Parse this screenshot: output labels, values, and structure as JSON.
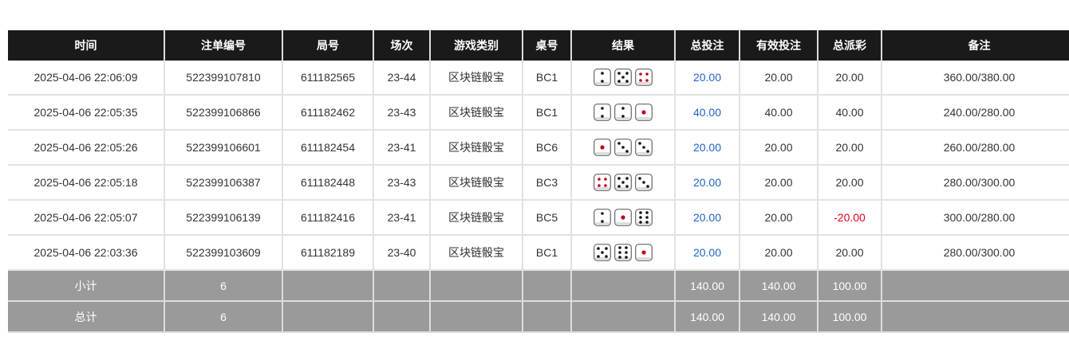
{
  "headers": [
    "时间",
    "注单编号",
    "局号",
    "场次",
    "游戏类别",
    "桌号",
    "结果",
    "总投注",
    "有效投注",
    "总派彩",
    "备注"
  ],
  "rows": [
    {
      "time": "2025-04-06 22:06:09",
      "order": "522399107810",
      "round": "611182565",
      "session": "23-44",
      "game": "区块链骰宝",
      "table": "BC1",
      "dice": [
        2,
        5,
        4
      ],
      "bet": "20.00",
      "valid": "20.00",
      "payout": "20.00",
      "payout_negative": false,
      "note": "360.00/380.00"
    },
    {
      "time": "2025-04-06 22:05:35",
      "order": "522399106866",
      "round": "611182462",
      "session": "23-43",
      "game": "区块链骰宝",
      "table": "BC1",
      "dice": [
        2,
        2,
        1
      ],
      "bet": "40.00",
      "valid": "40.00",
      "payout": "40.00",
      "payout_negative": false,
      "note": "240.00/280.00"
    },
    {
      "time": "2025-04-06 22:05:26",
      "order": "522399106601",
      "round": "611182454",
      "session": "23-41",
      "game": "区块链骰宝",
      "table": "BC6",
      "dice": [
        1,
        3,
        3
      ],
      "bet": "20.00",
      "valid": "20.00",
      "payout": "20.00",
      "payout_negative": false,
      "note": "260.00/280.00"
    },
    {
      "time": "2025-04-06 22:05:18",
      "order": "522399106387",
      "round": "611182448",
      "session": "23-43",
      "game": "区块链骰宝",
      "table": "BC3",
      "dice": [
        4,
        5,
        3
      ],
      "bet": "20.00",
      "valid": "20.00",
      "payout": "20.00",
      "payout_negative": false,
      "note": "280.00/300.00"
    },
    {
      "time": "2025-04-06 22:05:07",
      "order": "522399106139",
      "round": "611182416",
      "session": "23-41",
      "game": "区块链骰宝",
      "table": "BC5",
      "dice": [
        2,
        1,
        6
      ],
      "bet": "20.00",
      "valid": "20.00",
      "payout": "-20.00",
      "payout_negative": true,
      "note": "300.00/280.00"
    },
    {
      "time": "2025-04-06 22:03:36",
      "order": "522399103609",
      "round": "611182189",
      "session": "23-40",
      "game": "区块链骰宝",
      "table": "BC1",
      "dice": [
        5,
        6,
        1
      ],
      "bet": "20.00",
      "valid": "20.00",
      "payout": "20.00",
      "payout_negative": false,
      "note": "280.00/300.00"
    }
  ],
  "subtotal": {
    "label": "小计",
    "count": "6",
    "bet": "140.00",
    "valid": "140.00",
    "payout": "100.00"
  },
  "total": {
    "label": "总计",
    "count": "6",
    "bet": "140.00",
    "valid": "140.00",
    "payout": "100.00"
  },
  "colors": {
    "header_bg": "#1a1a1a",
    "summary_bg": "#9a9a9a",
    "bet_link": "#1e63c8",
    "negative": "#e0001a",
    "pip_red": "#c0001a"
  }
}
